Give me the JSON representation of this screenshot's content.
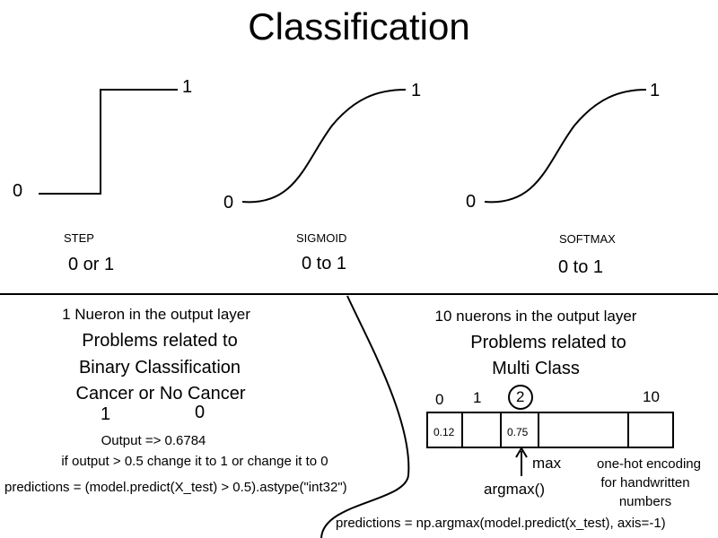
{
  "title": "Classification",
  "activations": [
    {
      "name": "STEP",
      "range": "0 or 1",
      "low": "0",
      "high": "1"
    },
    {
      "name": "SIGMOID",
      "range": "0 to 1",
      "low": "0",
      "high": "1"
    },
    {
      "name": "SOFTMAX",
      "range": "0 to 1",
      "low": "0",
      "high": "1"
    }
  ],
  "binary": {
    "heading": "1 Nueron in the output layer",
    "problem_line1": "Problems related to",
    "problem_line2": "Binary Classification",
    "classes": "Cancer or No Cancer",
    "class_value_1": "1",
    "class_value_2": "0",
    "output": "Output => 0.6784",
    "rule": "if output > 0.5 change it to 1 or change it to 0",
    "code": "predictions = (model.predict(X_test) > 0.5).astype(\"int32\")"
  },
  "multiclass": {
    "heading": "10 nuerons in the output layer",
    "problem_line1": "Problems related to",
    "problem_line2": "Multi Class",
    "index_labels": [
      "0",
      "1",
      "2",
      "10"
    ],
    "cell_values": [
      "0.12",
      "0.75"
    ],
    "max_label": "max",
    "argmax_label": "argmax()",
    "onehot_line1": "one-hot encoding",
    "onehot_line2": "for handwritten",
    "onehot_line3": "numbers",
    "code": "predictions = np.argmax(model.predict(x_test), axis=-1)"
  }
}
